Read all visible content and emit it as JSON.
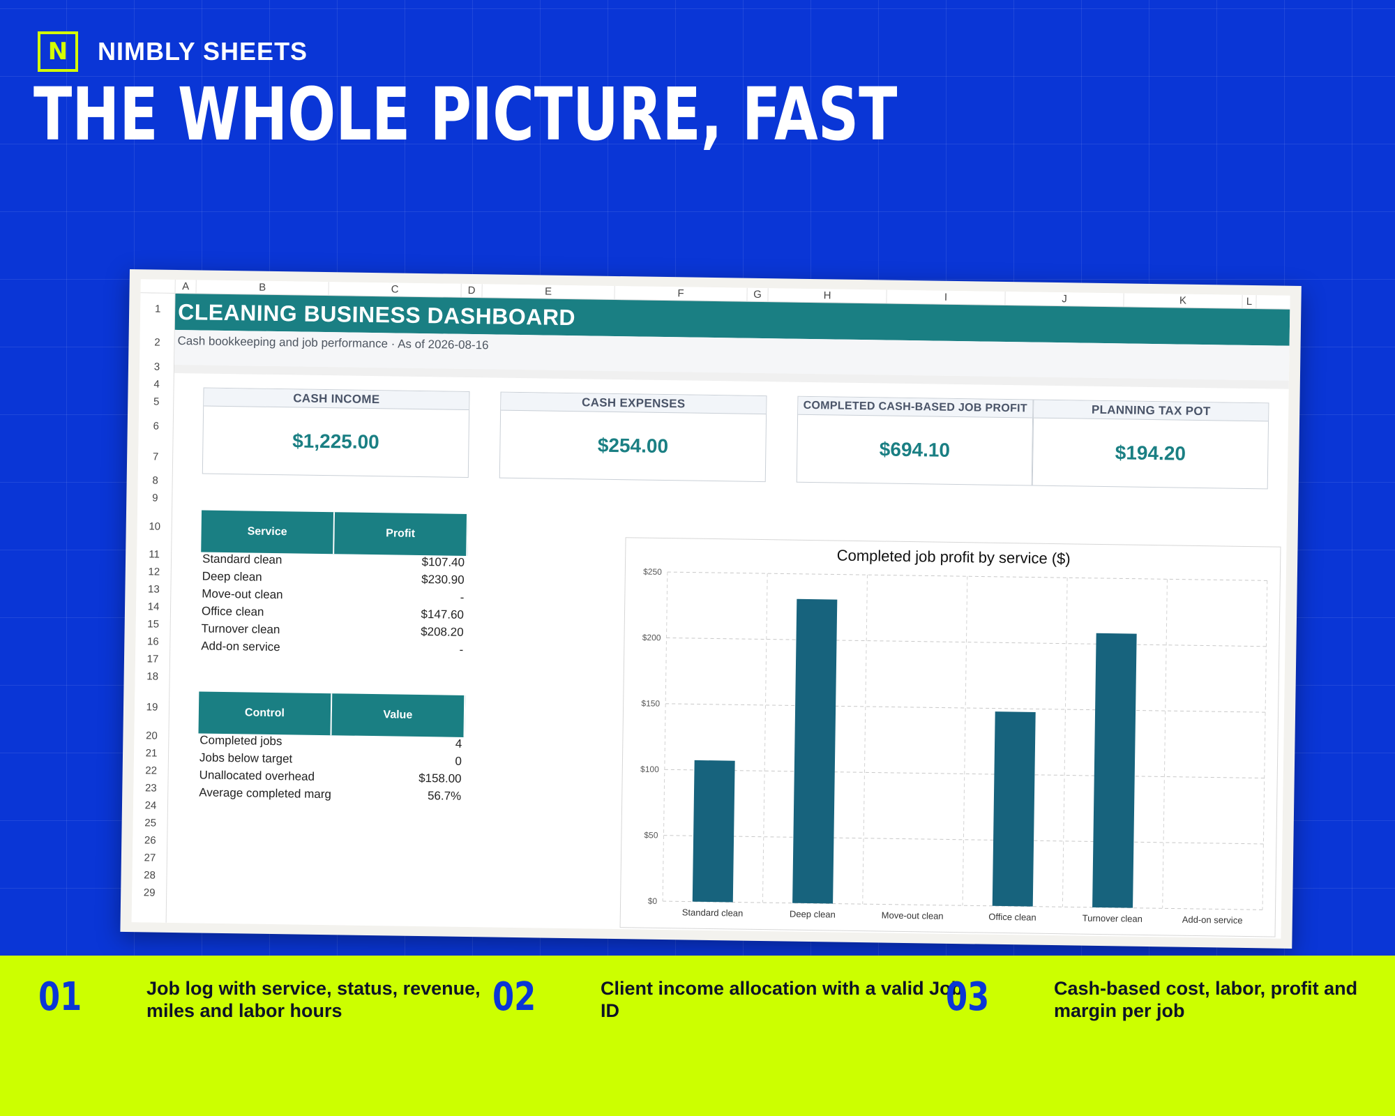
{
  "brand": {
    "logo_letter": "N",
    "name": "NIMBLY SHEETS"
  },
  "headline": "THE WHOLE PICTURE, FAST",
  "sheet": {
    "columns": [
      "A",
      "B",
      "C",
      "D",
      "E",
      "F",
      "G",
      "H",
      "I",
      "J",
      "K",
      "L"
    ],
    "rows": [
      "1",
      "2",
      "3",
      "4",
      "5",
      "6",
      "7",
      "8",
      "9",
      "10",
      "11",
      "12",
      "13",
      "14",
      "15",
      "16",
      "17",
      "18",
      "19",
      "20",
      "21",
      "22",
      "23",
      "24",
      "25",
      "26",
      "27",
      "28",
      "29"
    ],
    "title": "CLEANING BUSINESS DASHBOARD",
    "subtitle": "Cash bookkeeping and job performance · As of 2026-08-16",
    "kpis": [
      {
        "label": "CASH INCOME",
        "value": "$1,225.00"
      },
      {
        "label": "CASH EXPENSES",
        "value": "$254.00"
      },
      {
        "label": "COMPLETED CASH-BASED JOB PROFIT",
        "value": "$694.10"
      },
      {
        "label": "PLANNING TAX POT",
        "value": "$194.20"
      }
    ],
    "profit_table": {
      "headers": [
        "Service",
        "Profit"
      ],
      "rows": [
        [
          "Standard clean",
          "$107.40"
        ],
        [
          "Deep clean",
          "$230.90"
        ],
        [
          "Move-out clean",
          "-"
        ],
        [
          "Office clean",
          "$147.60"
        ],
        [
          "Turnover clean",
          "$208.20"
        ],
        [
          "Add-on service",
          "-"
        ]
      ]
    },
    "control_table": {
      "headers": [
        "Control",
        "Value"
      ],
      "rows": [
        [
          "Completed jobs",
          "4"
        ],
        [
          "Jobs below target",
          "0"
        ],
        [
          "Unallocated overhead",
          "$158.00"
        ],
        [
          "Average completed marg",
          "56.7%"
        ]
      ]
    }
  },
  "chart_data": {
    "type": "bar",
    "title": "Completed job profit by service ($)",
    "categories": [
      "Standard clean",
      "Deep clean",
      "Move-out clean",
      "Office clean",
      "Turnover clean",
      "Add-on service"
    ],
    "values": [
      107.4,
      230.9,
      0,
      147.6,
      208.2,
      0
    ],
    "ylim": [
      0,
      250
    ],
    "yticks": [
      0,
      50,
      100,
      150,
      200,
      250
    ],
    "ytick_labels": [
      "$0",
      "$50",
      "$100",
      "$150",
      "$200",
      "$250"
    ],
    "grid": true,
    "bar_color": "#17637d"
  },
  "features": [
    {
      "num": "01",
      "text": "Job log with service, status, revenue, miles and labor hours"
    },
    {
      "num": "02",
      "text": "Client income allocation with a valid Job ID"
    },
    {
      "num": "03",
      "text": "Cash-based cost, labor, profit and margin per job"
    }
  ],
  "colors": {
    "background": "#0a36d6",
    "accent": "#ccff00",
    "teal": "#1a7f83"
  }
}
